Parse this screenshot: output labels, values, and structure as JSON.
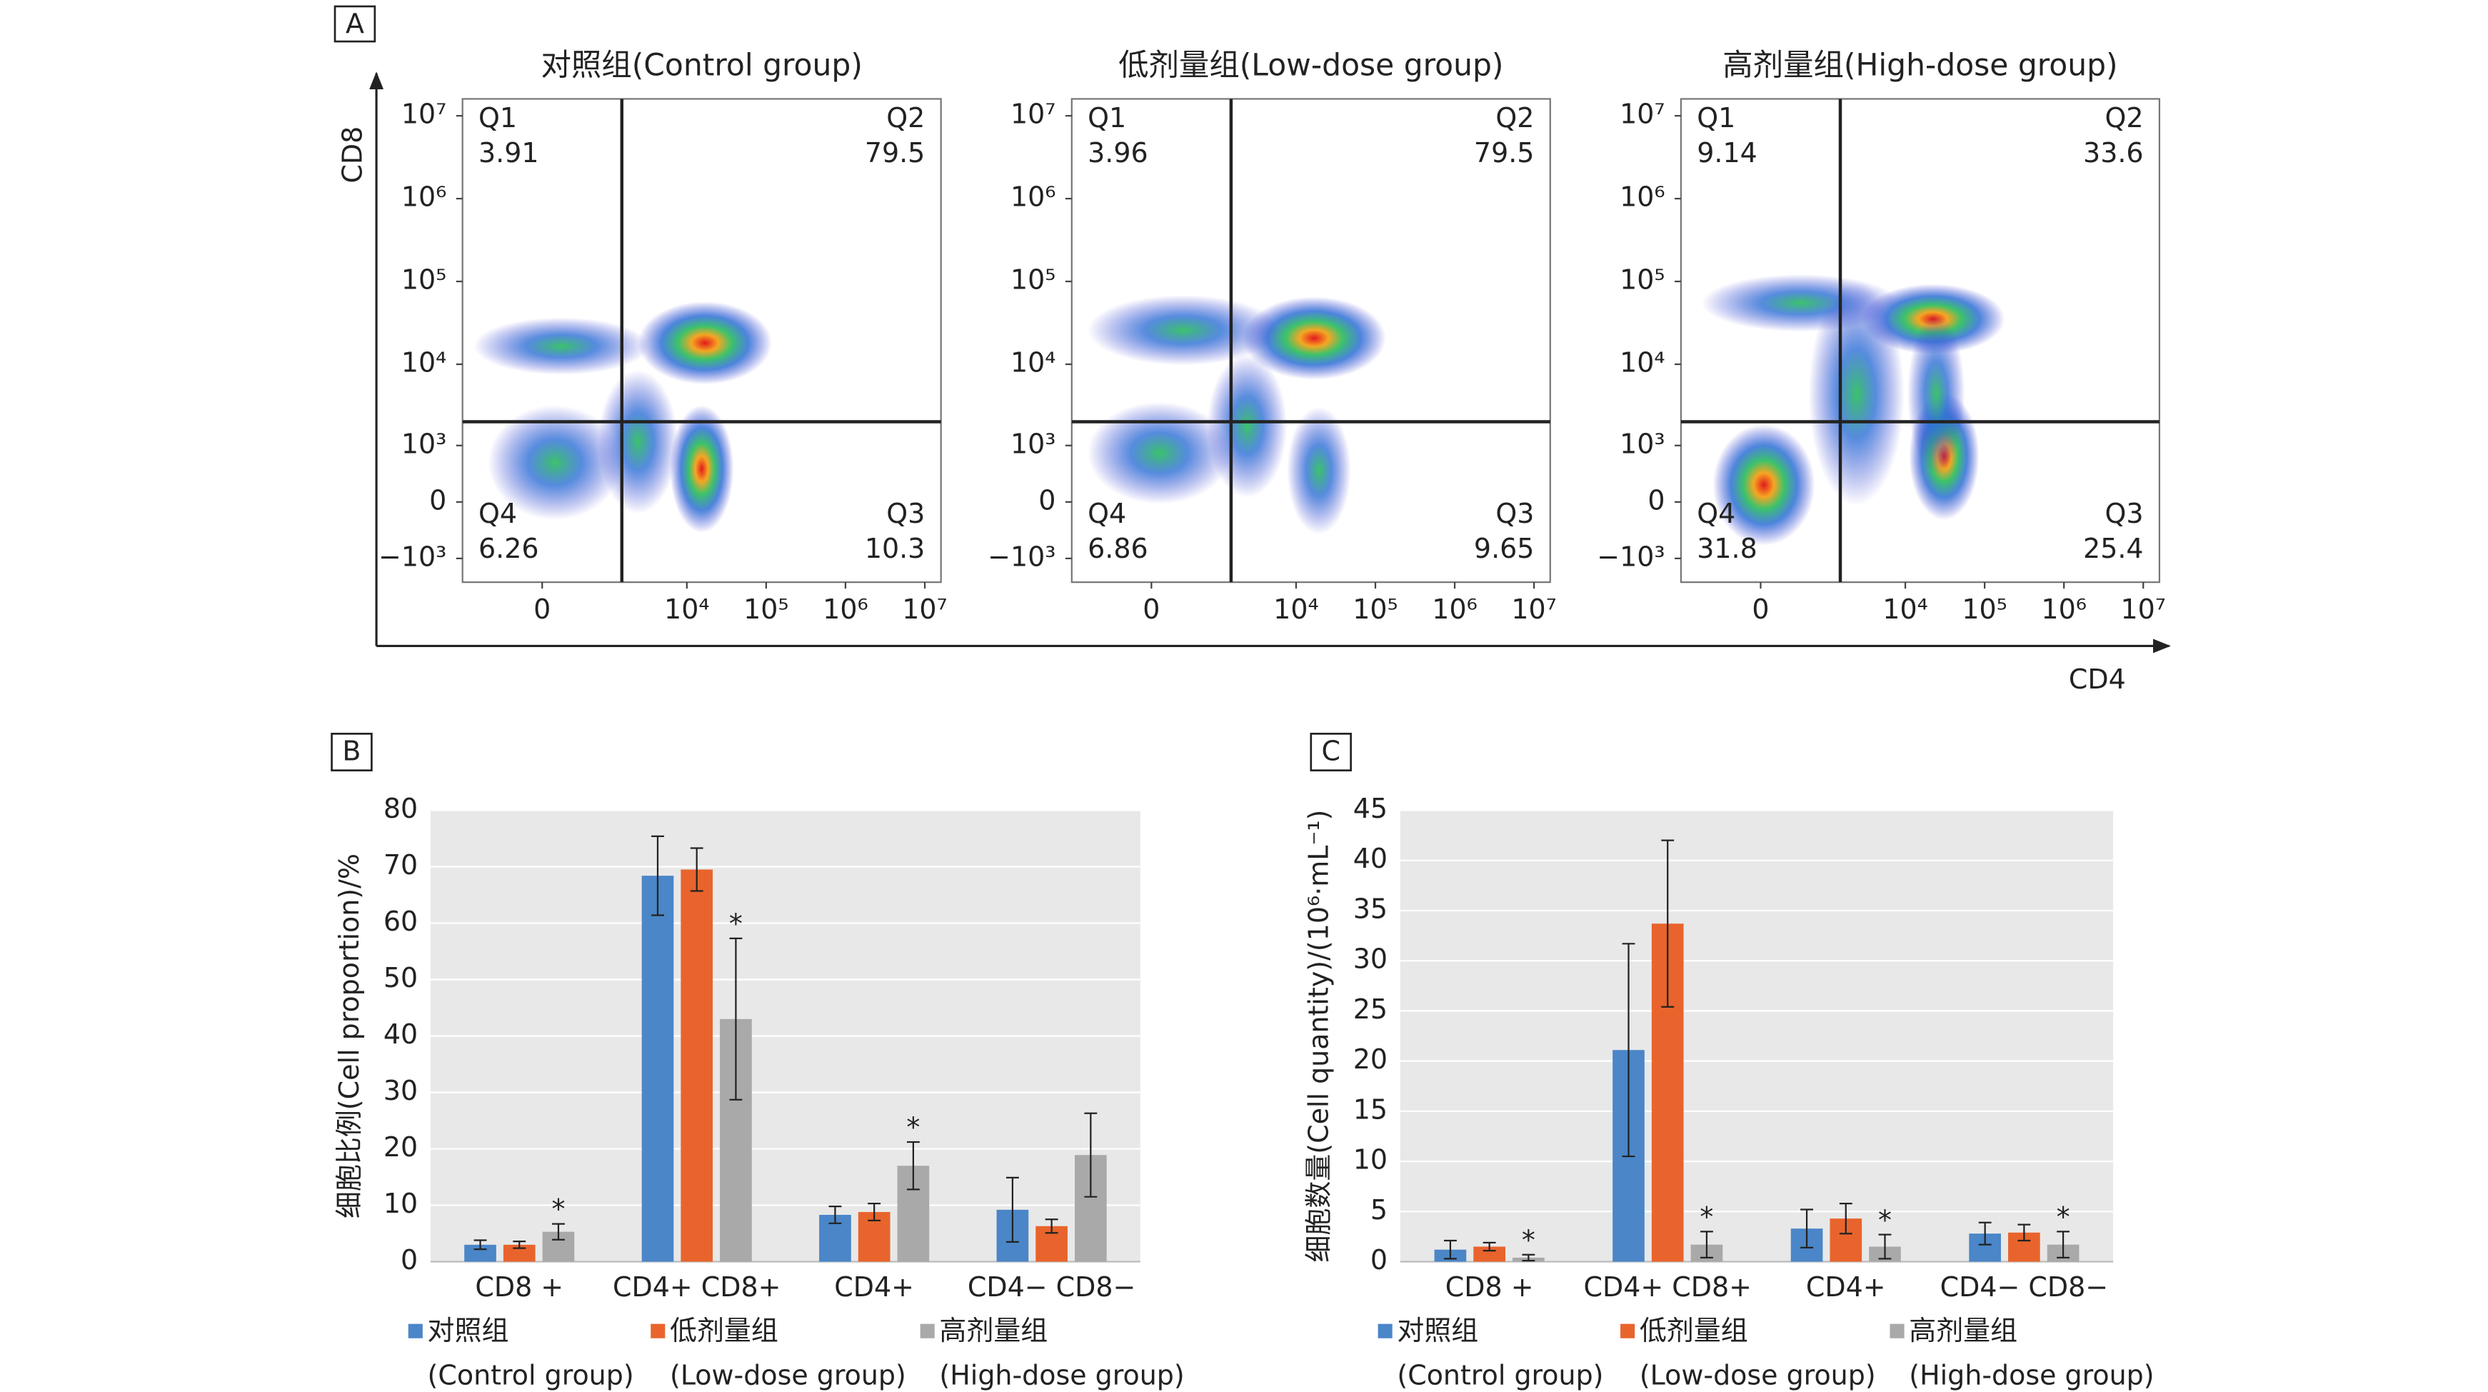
{
  "chart_data": [
    {
      "type": "flow",
      "panel": "A",
      "xlabel": "CD4",
      "ylabel": "CD8",
      "xlim": [
        -1500,
        16000000
      ],
      "ylim": [
        -2000,
        16000000
      ],
      "xticks": [
        {
          "value": 0,
          "label": "0"
        },
        {
          "value": 10000,
          "label": "10⁴"
        },
        {
          "value": 100000,
          "label": "10⁵"
        },
        {
          "value": 1000000,
          "label": "10⁶"
        },
        {
          "value": 10000000,
          "label": "10⁷"
        }
      ],
      "yticks": [
        {
          "value": -1000,
          "label": "−10³"
        },
        {
          "value": 0,
          "label": "0"
        },
        {
          "value": 1000,
          "label": "10³"
        },
        {
          "value": 10000,
          "label": "10⁴"
        },
        {
          "value": 100000,
          "label": "10⁵"
        },
        {
          "value": 1000000,
          "label": "10⁶"
        },
        {
          "value": 10000000,
          "label": "10⁷"
        }
      ],
      "gate": {
        "x": 1500,
        "y": 2000
      },
      "plots": [
        {
          "title": "对照组(Control group)",
          "quadrants": [
            {
              "name": "Q1",
              "value": 3.91
            },
            {
              "name": "Q2",
              "value": 79.5
            },
            {
              "name": "Q3",
              "value": 10.3
            },
            {
              "name": "Q4",
              "value": 6.26
            }
          ]
        },
        {
          "title": "低剂量组(Low-dose group)",
          "quadrants": [
            {
              "name": "Q1",
              "value": 3.96
            },
            {
              "name": "Q2",
              "value": 79.5
            },
            {
              "name": "Q3",
              "value": 9.65
            },
            {
              "name": "Q4",
              "value": 6.86
            }
          ]
        },
        {
          "title": "高剂量组(High-dose group)",
          "quadrants": [
            {
              "name": "Q1",
              "value": 9.14
            },
            {
              "name": "Q2",
              "value": 33.6
            },
            {
              "name": "Q3",
              "value": 25.4
            },
            {
              "name": "Q4",
              "value": 31.8
            }
          ]
        }
      ]
    },
    {
      "type": "bar",
      "panel": "B",
      "ylabel": "细胞比例(Cell proportion)/%",
      "categories": [
        "CD8 +",
        "CD4+ CD8+",
        "CD4+",
        "CD4− CD8−"
      ],
      "ylim": [
        0,
        80
      ],
      "yticks": [
        0,
        10,
        20,
        30,
        40,
        50,
        60,
        70,
        80
      ],
      "grid": true,
      "legend": "bottom",
      "series": [
        {
          "name": "对照组(Control group)",
          "color": "#4a86c8",
          "values": [
            3,
            68.4,
            8.3,
            9.2
          ],
          "errors": [
            0.8,
            7,
            1.5,
            5.7
          ]
        },
        {
          "name": "低剂量组(Low-dose group)",
          "color": "#e8642c",
          "values": [
            3,
            69.5,
            8.8,
            6.3
          ],
          "errors": [
            0.6,
            3.8,
            1.5,
            1.2
          ]
        },
        {
          "name": "高剂量组(High-dose group)",
          "color": "#a9a9a9",
          "values": [
            5.3,
            43,
            17,
            18.9
          ],
          "errors": [
            1.4,
            14.3,
            4.2,
            7.4
          ],
          "labels": [
            "*",
            "*",
            "*",
            null
          ]
        }
      ]
    },
    {
      "type": "bar",
      "panel": "C",
      "ylabel": "细胞数量(Cell quantity)/(10⁶·mL⁻¹)",
      "categories": [
        "CD8 +",
        "CD4+ CD8+",
        "CD4+",
        "CD4− CD8−"
      ],
      "ylim": [
        0,
        45
      ],
      "yticks": [
        0,
        5,
        10,
        15,
        20,
        25,
        30,
        35,
        40,
        45
      ],
      "grid": true,
      "legend": "bottom",
      "series": [
        {
          "name": "对照组(Control group)",
          "color": "#4a86c8",
          "values": [
            1.2,
            21.1,
            3.3,
            2.8
          ],
          "errors": [
            0.9,
            10.6,
            1.9,
            1.1
          ]
        },
        {
          "name": "低剂量组(Low-dose group)",
          "color": "#e8642c",
          "values": [
            1.5,
            33.7,
            4.3,
            2.9
          ],
          "errors": [
            0.4,
            8.3,
            1.5,
            0.8
          ]
        },
        {
          "name": "高剂量组(High-dose group)",
          "color": "#a9a9a9",
          "values": [
            0.4,
            1.7,
            1.5,
            1.7
          ],
          "errors": [
            0.3,
            1.3,
            1.2,
            1.3
          ],
          "labels": [
            "*",
            "*",
            "*",
            "*"
          ]
        }
      ]
    }
  ]
}
